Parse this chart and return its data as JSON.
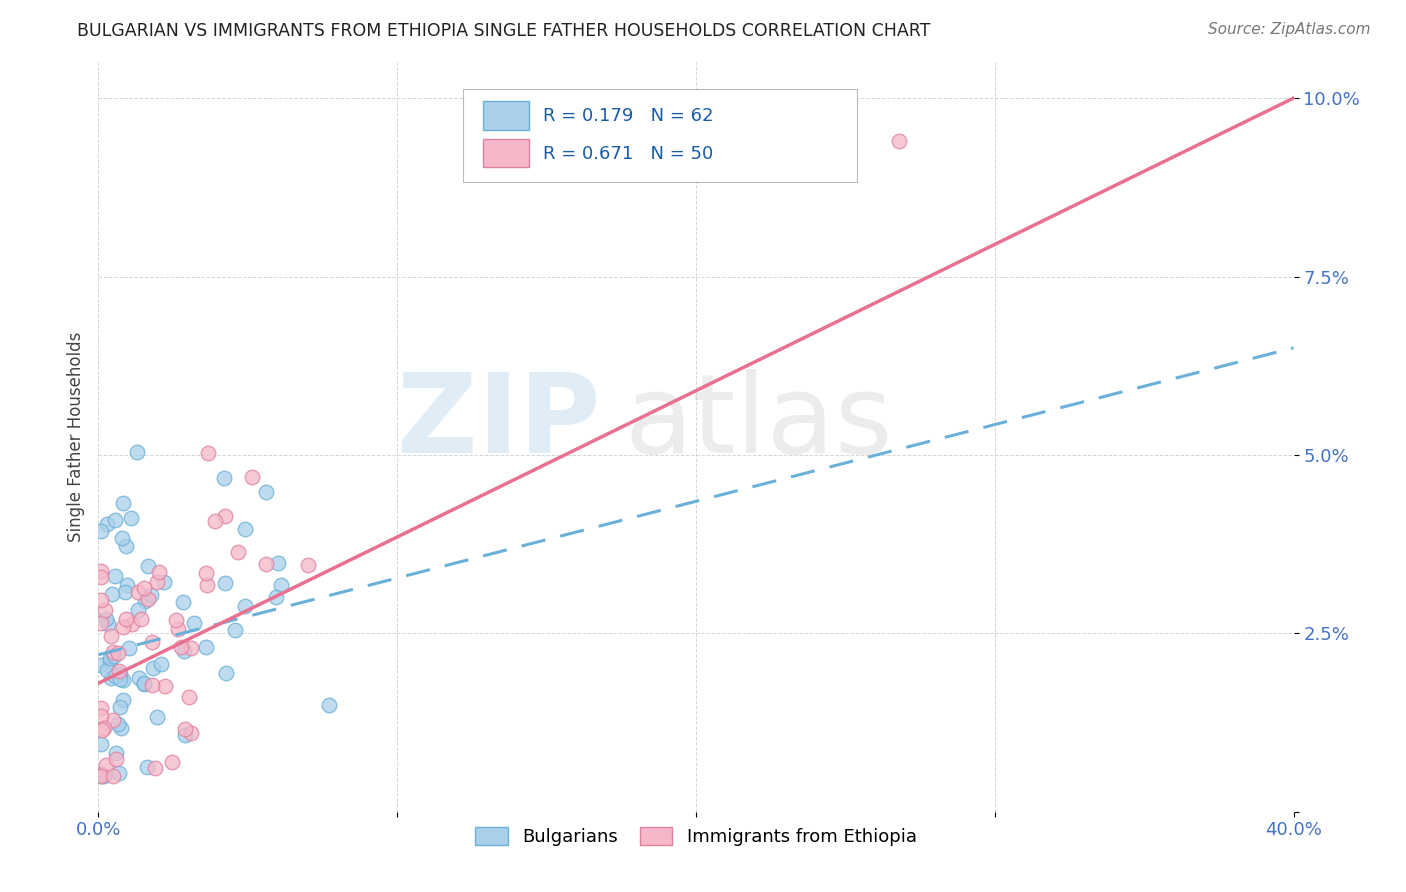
{
  "title": "BULGARIAN VS IMMIGRANTS FROM ETHIOPIA SINGLE FATHER HOUSEHOLDS CORRELATION CHART",
  "source": "Source: ZipAtlas.com",
  "ylabel": "Single Father Households",
  "xlim": [
    0.0,
    0.4
  ],
  "ylim": [
    0.0,
    0.105
  ],
  "xticks": [
    0.0,
    0.1,
    0.2,
    0.3,
    0.4
  ],
  "yticks": [
    0.0,
    0.025,
    0.05,
    0.075,
    0.1
  ],
  "xticklabels": [
    "0.0%",
    "",
    "",
    "",
    "40.0%"
  ],
  "yticklabels": [
    "",
    "2.5%",
    "5.0%",
    "7.5%",
    "10.0%"
  ],
  "bulgarians_color": "#aacfea",
  "bulgarians_edge": "#6ab0d8",
  "ethiopia_color": "#f5b8c8",
  "ethiopia_edge": "#e080a0",
  "trend_bulgarian_color": "#6ab0d8",
  "trend_ethiopia_color": "#e87090",
  "R_bulgarian": 0.179,
  "N_bulgarian": 62,
  "R_ethiopia": 0.671,
  "N_ethiopia": 50,
  "legend_labels": [
    "Bulgarians",
    "Immigrants from Ethiopia"
  ],
  "watermark_zip": "ZIP",
  "watermark_atlas": "atlas",
  "bulg_trend_x0": 0.0,
  "bulg_trend_y0": 0.022,
  "bulg_trend_x1": 0.4,
  "bulg_trend_y1": 0.065,
  "eth_trend_x0": 0.0,
  "eth_trend_y0": 0.018,
  "eth_trend_x1": 0.4,
  "eth_trend_y1": 0.1
}
